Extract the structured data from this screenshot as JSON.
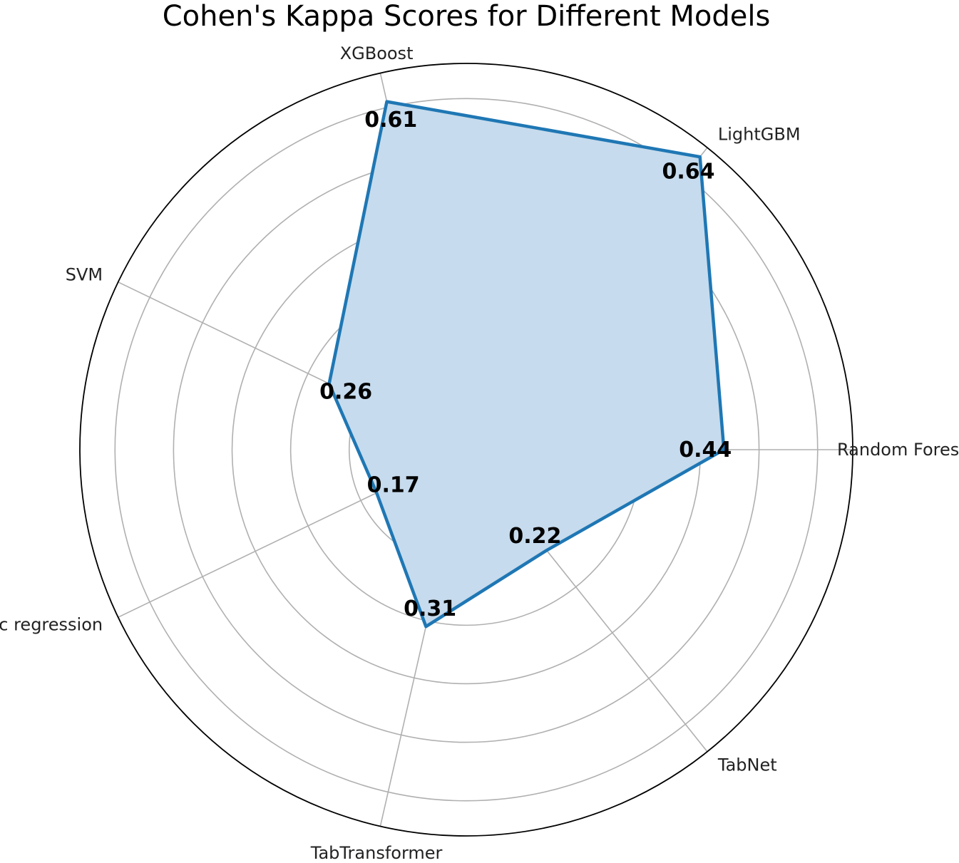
{
  "chart_data": {
    "type": "radar",
    "title": "Cohen's Kappa Scores for Different Models",
    "categories": [
      "Random Forest",
      "LightGBM",
      "XGBoost",
      "SVM",
      "Logistic regression",
      "TabTransformer",
      "TabNet"
    ],
    "values": [
      0.44,
      0.64,
      0.61,
      0.26,
      0.17,
      0.31,
      0.22
    ],
    "value_labels": [
      "0.44",
      "0.64",
      "0.61",
      "0.26",
      "0.17",
      "0.31",
      "0.22"
    ],
    "rlim": [
      0,
      0.66
    ],
    "r_grid_step": 0.1,
    "grid": true,
    "colors": {
      "line": "#1f77b4",
      "fill": "#c6dbed",
      "grid": "#b0b0b0",
      "outer_ring": "#000000"
    }
  }
}
